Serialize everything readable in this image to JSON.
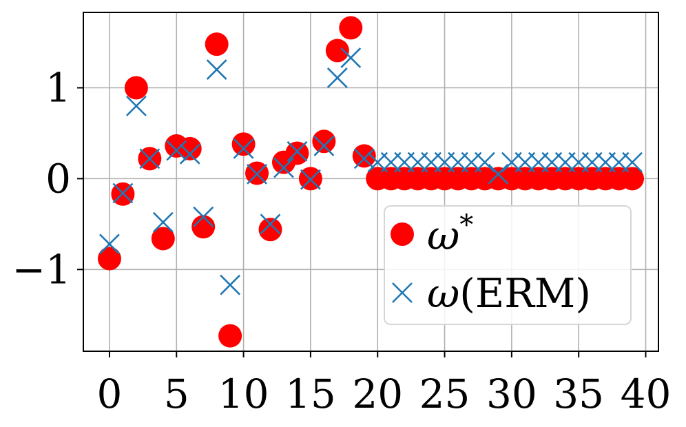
{
  "chart_data": {
    "type": "scatter",
    "title": "",
    "xlabel": "",
    "ylabel": "",
    "xlim": [
      -1.95,
      40.95
    ],
    "ylim": [
      -1.9,
      1.83
    ],
    "grid": true,
    "legend_placement": "lower-right",
    "x_ticks": [
      0,
      5,
      10,
      15,
      20,
      25,
      30,
      35,
      40
    ],
    "x_tick_labels": [
      "0",
      "5",
      "10",
      "15",
      "20",
      "25",
      "30",
      "35",
      "40"
    ],
    "y_ticks": [
      -1,
      0,
      1
    ],
    "y_tick_labels": [
      "−1",
      "0",
      "1"
    ],
    "series": [
      {
        "name": "ω*",
        "name_symbol": "ω",
        "name_superscript": "*",
        "marker": "circle",
        "color": "#ff0000",
        "x": [
          0,
          1,
          2,
          3,
          4,
          5,
          6,
          7,
          8,
          9,
          10,
          11,
          12,
          13,
          14,
          15,
          16,
          17,
          18,
          19,
          20,
          21,
          22,
          23,
          24,
          25,
          26,
          27,
          28,
          29,
          30,
          31,
          32,
          33,
          34,
          35,
          36,
          37,
          38,
          39
        ],
        "y": [
          -0.88,
          -0.17,
          1.0,
          0.22,
          -0.66,
          0.36,
          0.33,
          -0.53,
          1.48,
          -1.73,
          0.38,
          0.06,
          -0.56,
          0.18,
          0.28,
          0.0,
          0.41,
          1.41,
          1.66,
          0.25,
          0,
          0,
          0,
          0,
          0,
          0,
          0,
          0,
          0,
          0,
          0,
          0,
          0,
          0,
          0,
          0,
          0,
          0,
          0,
          0
        ]
      },
      {
        "name": "ω(ERM)",
        "name_symbol": "ω",
        "name_rest": "(ERM)",
        "marker": "x",
        "color": "#1f77b4",
        "x": [
          0,
          1,
          2,
          3,
          4,
          5,
          6,
          7,
          8,
          9,
          10,
          11,
          12,
          13,
          14,
          15,
          16,
          17,
          18,
          19,
          20,
          21,
          22,
          23,
          24,
          25,
          26,
          27,
          28,
          29,
          30,
          31,
          32,
          33,
          34,
          35,
          36,
          37,
          38,
          39
        ],
        "y": [
          -0.72,
          -0.16,
          0.8,
          0.22,
          -0.48,
          0.31,
          0.27,
          -0.42,
          1.2,
          -1.17,
          0.33,
          0.05,
          -0.5,
          0.12,
          0.3,
          -0.01,
          0.36,
          1.11,
          1.33,
          0.22,
          0.18,
          0.18,
          0.18,
          0.18,
          0.18,
          0.18,
          0.18,
          0.18,
          0.18,
          0.05,
          0.18,
          0.18,
          0.18,
          0.18,
          0.18,
          0.18,
          0.18,
          0.18,
          0.18,
          0.18
        ]
      }
    ]
  }
}
